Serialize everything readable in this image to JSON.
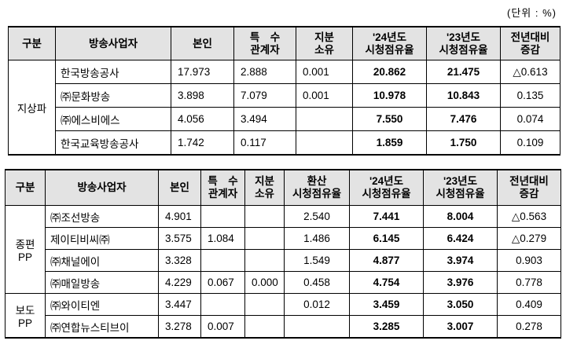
{
  "unit_note": "(단위 : %)",
  "table1": {
    "headers": [
      "구분",
      "방송사업자",
      "본인",
      "특　수\n관계자",
      "지분\n소유",
      "'24년도\n시청점유율",
      "'23년도\n시청점유율",
      "전년대비\n증감"
    ],
    "category": "지상파",
    "rows": [
      {
        "name": "한국방송공사",
        "own": "17.973",
        "related": "2.888",
        "share": "0.001",
        "y24": "20.862",
        "y23": "21.475",
        "diff": "△0.613"
      },
      {
        "name": "㈜문화방송",
        "own": "3.898",
        "related": "7.079",
        "share": "0.001",
        "y24": "10.978",
        "y23": "10.843",
        "diff": "0.135"
      },
      {
        "name": "㈜에스비에스",
        "own": "4.056",
        "related": "3.494",
        "share": "",
        "y24": "7.550",
        "y23": "7.476",
        "diff": "0.074"
      },
      {
        "name": "한국교육방송공사",
        "own": "1.742",
        "related": "0.117",
        "share": "",
        "y24": "1.859",
        "y23": "1.750",
        "diff": "0.109"
      }
    ]
  },
  "table2": {
    "headers": [
      "구분",
      "방송사업자",
      "본인",
      "특　수\n관계자",
      "지분\n소유",
      "환산\n시청점유율",
      "'24년도\n시청점유율",
      "'23년도\n시청점유율",
      "전년대비\n증감"
    ],
    "groups": [
      {
        "category": "종편\nPP",
        "rows": [
          {
            "name": "㈜조선방송",
            "own": "4.901",
            "related": "",
            "share": "",
            "conv": "2.540",
            "y24": "7.441",
            "y23": "8.004",
            "diff": "△0.563"
          },
          {
            "name": "제이티비씨㈜",
            "own": "3.575",
            "related": "1.084",
            "share": "",
            "conv": "1.486",
            "y24": "6.145",
            "y23": "6.424",
            "diff": "△0.279"
          },
          {
            "name": "㈜채널에이",
            "own": "3.328",
            "related": "",
            "share": "",
            "conv": "1.549",
            "y24": "4.877",
            "y23": "3.974",
            "diff": "0.903"
          },
          {
            "name": "㈜매일방송",
            "own": "4.229",
            "related": "0.067",
            "share": "0.000",
            "conv": "0.458",
            "y24": "4.754",
            "y23": "3.976",
            "diff": "0.778"
          }
        ]
      },
      {
        "category": "보도\nPP",
        "rows": [
          {
            "name": "㈜와이티엔",
            "own": "3.447",
            "related": "",
            "share": "",
            "conv": "0.012",
            "y24": "3.459",
            "y23": "3.050",
            "diff": "0.409"
          },
          {
            "name": "㈜연합뉴스티브이",
            "own": "3.278",
            "related": "0.007",
            "share": "",
            "conv": "",
            "y24": "3.285",
            "y23": "3.007",
            "diff": "0.278"
          }
        ]
      }
    ]
  }
}
